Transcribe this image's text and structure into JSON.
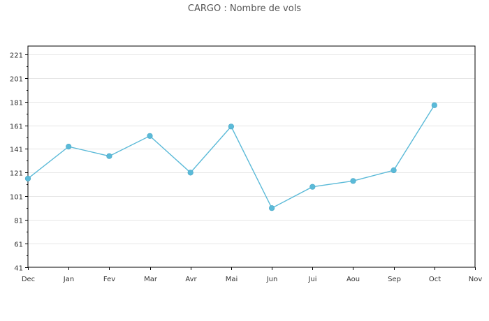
{
  "chart_data": {
    "type": "line",
    "title": "CARGO : Nombre de vols",
    "xlabel": "",
    "ylabel": "",
    "categories": [
      "Dec",
      "Jan",
      "Fev",
      "Mar",
      "Avr",
      "Mai",
      "Jun",
      "Jui",
      "Aou",
      "Sep",
      "Oct",
      "Nov"
    ],
    "series": [
      {
        "values": [
          116,
          143,
          135,
          152,
          121,
          160,
          91,
          109,
          114,
          123,
          178,
          null
        ]
      }
    ],
    "ylim": [
      41,
      228
    ],
    "yticks": [
      41,
      61,
      81,
      101,
      121,
      141,
      161,
      181,
      201,
      221
    ],
    "grid": true,
    "legend": "none",
    "colors": {
      "line": "#5bbad8",
      "marker": "#5bbad8",
      "grid": "#e6e6e6",
      "axis": "#000000"
    }
  }
}
